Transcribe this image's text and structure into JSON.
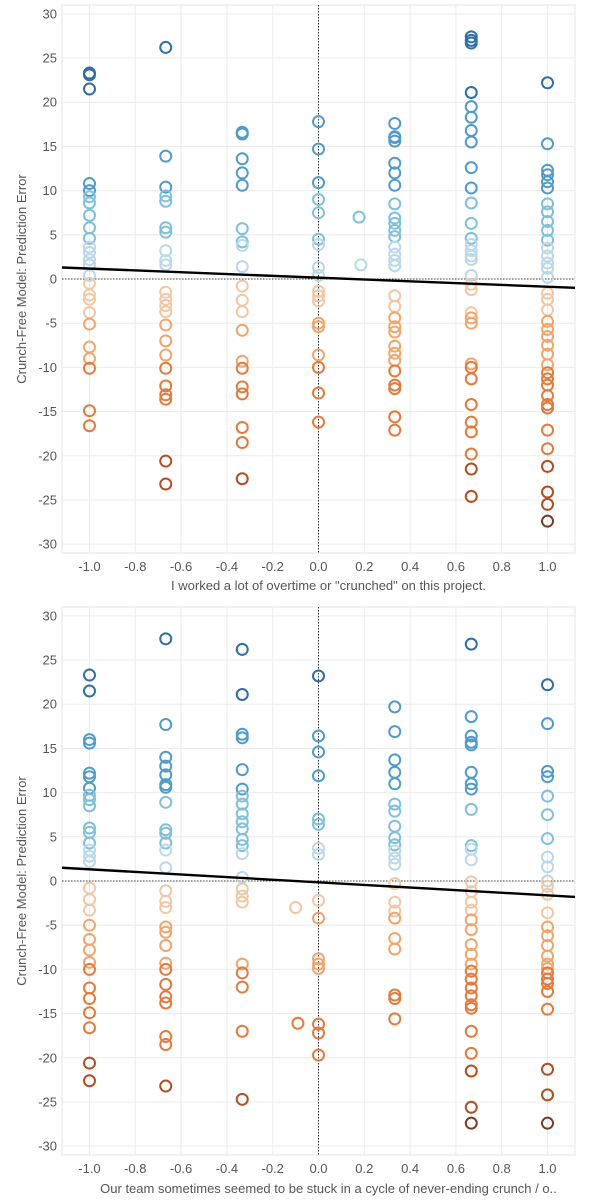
{
  "colors": {
    "grid": "#ececec",
    "zero_line": "#000000",
    "trend": "#000000",
    "positive_scale": [
      "#b9d9e8",
      "#7fc0dc",
      "#4f9bcb",
      "#2f6ea7"
    ],
    "negative_scale": [
      "#f2c7a2",
      "#f2a56b",
      "#e57a3a",
      "#b34e20",
      "#7a3a24"
    ]
  },
  "chart_data": [
    {
      "type": "scatter",
      "title": "",
      "xlabel": "I worked a lot of overtime or \"crunched\" on this project.",
      "ylabel": "Crunch-Free Model: Prediction Error",
      "xlim": [
        -1.12,
        1.12
      ],
      "ylim": [
        -31,
        31
      ],
      "x_ticks": [
        "-1.0",
        "-0.8",
        "-0.6",
        "-0.4",
        "-0.2",
        "0.0",
        "0.2",
        "0.4",
        "0.6",
        "0.8",
        "1.0"
      ],
      "y_ticks": [
        "30",
        "25",
        "20",
        "15",
        "10",
        "5",
        "0",
        "-5",
        "-10",
        "-15",
        "-20",
        "-25",
        "-30"
      ],
      "grid": true,
      "trend_line": {
        "x": [
          -1.12,
          1.12
        ],
        "y": [
          1.3,
          -1.0
        ]
      },
      "points": [
        {
          "x": -1.0,
          "y": [
            23.3,
            23.1,
            21.5,
            10.8,
            10.0,
            9.3,
            8.6,
            7.2,
            5.8,
            4.6,
            3.6,
            3.0,
            2.2,
            1.6,
            0.4,
            -0.5,
            -1.8,
            -2.3,
            -3.8,
            -5.1,
            -7.7,
            -9.0,
            -10.1,
            -14.9,
            -16.6
          ]
        },
        {
          "x": -0.667,
          "y": [
            26.2,
            13.9,
            10.4,
            9.4,
            8.8,
            5.8,
            5.3,
            3.2,
            2.1,
            1.6,
            -1.5,
            -2.3,
            -3.0,
            -3.7,
            -5.2,
            -7.0,
            -8.6,
            -10.1,
            -12.1,
            -13.1,
            -13.6,
            -20.6,
            -23.2
          ]
        },
        {
          "x": -0.333,
          "y": [
            16.6,
            16.4,
            13.6,
            12.0,
            10.6,
            5.7,
            4.2,
            3.8,
            1.4,
            -0.8,
            -2.4,
            -3.7,
            -5.8,
            -9.3,
            -10.1,
            -12.2,
            -13.0,
            -16.8,
            -18.5,
            -22.6
          ]
        },
        {
          "x": 0.0,
          "y": [
            17.8,
            14.7,
            10.9,
            9.0,
            7.5,
            4.5,
            3.9,
            1.3,
            0.4,
            -1.4,
            -1.9,
            -2.5,
            -5.0,
            -5.4,
            -8.6,
            -10.0,
            -12.9,
            -16.2
          ]
        },
        {
          "x": 0.177,
          "y": [
            7.0
          ]
        },
        {
          "x": 0.185,
          "y": [
            1.6
          ]
        },
        {
          "x": 0.333,
          "y": [
            17.6,
            16.1,
            16.0,
            15.6,
            13.1,
            12.0,
            10.6,
            8.5,
            6.9,
            6.3,
            5.5,
            4.8,
            3.6,
            2.8,
            2.1,
            1.5,
            -1.9,
            -3.1,
            -4.4,
            -5.4,
            -6.0,
            -7.6,
            -8.4,
            -9.2,
            -10.4,
            -12.0,
            -12.4,
            -15.6,
            -17.1
          ]
        },
        {
          "x": 0.667,
          "y": [
            27.4,
            27.0,
            26.7,
            21.1,
            19.5,
            18.3,
            16.8,
            15.5,
            12.6,
            10.3,
            8.6,
            6.3,
            4.6,
            3.9,
            3.2,
            2.6,
            2.2,
            0.4,
            -0.6,
            -1.2,
            -3.8,
            -4.4,
            -5.0,
            -9.6,
            -10.0,
            -11.3,
            -14.2,
            -16.2,
            -17.3,
            -19.8,
            -21.5,
            -24.6
          ]
        },
        {
          "x": 1.0,
          "y": [
            22.2,
            15.3,
            12.3,
            11.8,
            11.0,
            10.3,
            8.5,
            7.6,
            6.5,
            5.5,
            4.4,
            3.5,
            2.6,
            1.8,
            1.2,
            0.2,
            -1.6,
            -2.3,
            -3.5,
            -4.8,
            -5.7,
            -6.5,
            -7.5,
            -8.5,
            -9.7,
            -10.6,
            -11.3,
            -12.0,
            -13.2,
            -14.2,
            -14.6,
            -17.1,
            -19.2,
            -21.2,
            -24.1,
            -25.5,
            -27.4
          ]
        }
      ]
    },
    {
      "type": "scatter",
      "title": "",
      "xlabel": "Our team sometimes seemed to be stuck in a cycle of never-ending crunch / o..",
      "ylabel": "Crunch-Free Model: Prediction Error",
      "xlim": [
        -1.12,
        1.12
      ],
      "ylim": [
        -31,
        31
      ],
      "x_ticks": [
        "-1.0",
        "-0.8",
        "-0.6",
        "-0.4",
        "-0.2",
        "0.0",
        "0.2",
        "0.4",
        "0.6",
        "0.8",
        "1.0"
      ],
      "y_ticks": [
        "30",
        "25",
        "20",
        "15",
        "10",
        "5",
        "0",
        "-5",
        "-10",
        "-15",
        "-20",
        "-25",
        "-30"
      ],
      "grid": true,
      "trend_line": {
        "x": [
          -1.12,
          1.12
        ],
        "y": [
          1.5,
          -1.8
        ]
      },
      "points": [
        {
          "x": -1.0,
          "y": [
            23.3,
            21.5,
            16.0,
            15.6,
            12.2,
            11.8,
            10.5,
            9.7,
            9.2,
            8.5,
            6.0,
            5.5,
            4.3,
            3.5,
            2.8,
            2.2,
            -0.8,
            -2.1,
            -3.3,
            -5.0,
            -6.6,
            -7.8,
            -9.2,
            -10.0,
            -12.1,
            -13.3,
            -14.9,
            -16.6,
            -20.6,
            -22.6
          ]
        },
        {
          "x": -0.667,
          "y": [
            27.4,
            17.7,
            14.0,
            13.0,
            12.0,
            10.9,
            10.6,
            8.9,
            5.8,
            5.4,
            4.3,
            3.5,
            1.5,
            -1.1,
            -2.3,
            -3.0,
            -5.2,
            -5.8,
            -7.3,
            -9.3,
            -10.0,
            -11.7,
            -13.1,
            -13.8,
            -17.6,
            -18.5,
            -23.2
          ]
        },
        {
          "x": -0.333,
          "y": [
            26.2,
            21.1,
            16.6,
            16.2,
            12.6,
            10.4,
            9.6,
            8.7,
            7.6,
            6.7,
            5.9,
            4.7,
            4.0,
            3.1,
            0.4,
            -0.9,
            -1.7,
            -2.4,
            -9.4,
            -10.4,
            -12.0,
            -17.0,
            -24.7
          ]
        },
        {
          "x": -0.1,
          "y": [
            -3.0
          ]
        },
        {
          "x": -0.09,
          "y": [
            -16.1
          ]
        },
        {
          "x": 0.0,
          "y": [
            23.2,
            16.4,
            14.6,
            11.9,
            7.0,
            6.4,
            3.7,
            3.0,
            -2.2,
            -4.2,
            -8.8,
            -9.4,
            -9.9,
            -16.2,
            -17.2,
            -19.7
          ]
        },
        {
          "x": 0.333,
          "y": [
            19.7,
            16.9,
            13.7,
            12.3,
            11.0,
            8.7,
            7.9,
            6.2,
            4.9,
            4.1,
            3.4,
            2.6,
            1.9,
            -0.3,
            -2.4,
            -3.4,
            -4.2,
            -6.5,
            -7.7,
            -12.9,
            -13.3,
            -15.6
          ]
        },
        {
          "x": 0.667,
          "y": [
            26.8,
            18.6,
            16.4,
            15.7,
            15.4,
            12.3,
            11.0,
            10.4,
            8.1,
            4.0,
            3.6,
            2.4,
            -0.1,
            -1.2,
            -2.4,
            -3.3,
            -4.4,
            -5.5,
            -7.2,
            -8.3,
            -9.4,
            -10.2,
            -11.1,
            -12.1,
            -13.0,
            -14.0,
            -14.4,
            -17.0,
            -19.5,
            -21.5,
            -25.6,
            -27.4
          ]
        },
        {
          "x": 1.0,
          "y": [
            22.2,
            17.8,
            12.4,
            11.8,
            9.6,
            7.5,
            4.8,
            2.7,
            1.6,
            0.0,
            -0.6,
            -1.5,
            -3.6,
            -5.2,
            -6.2,
            -7.3,
            -8.5,
            -9.4,
            -9.9,
            -10.4,
            -11.1,
            -11.6,
            -12.5,
            -14.5,
            -21.3,
            -24.2,
            -27.4
          ]
        }
      ]
    }
  ]
}
